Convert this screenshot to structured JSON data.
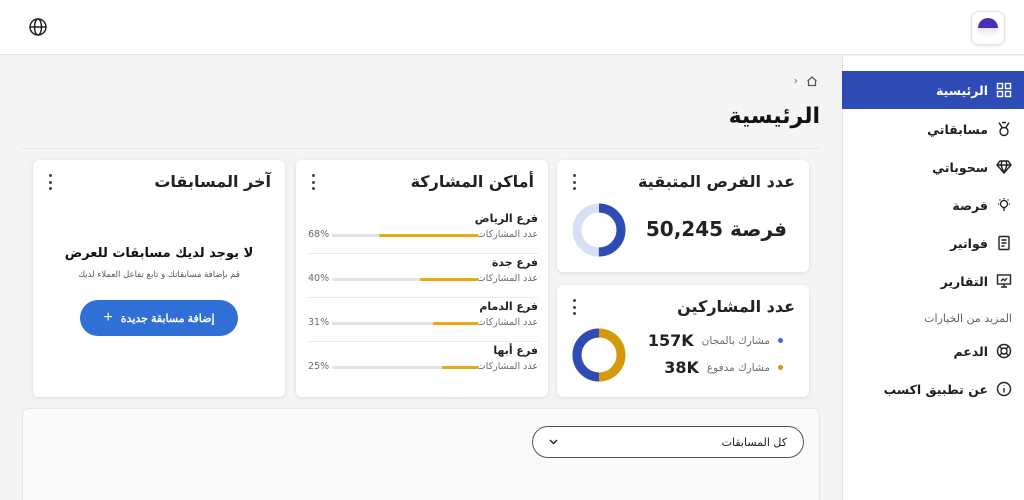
{
  "header": {
    "globe_icon": "globe-icon",
    "logo_icon": "app-logo"
  },
  "sidebar": {
    "items": [
      {
        "label": "الرئيسية",
        "icon": "dashboard-icon",
        "active": true
      },
      {
        "label": "مسابقاتي",
        "icon": "medal-icon",
        "active": false
      },
      {
        "label": "سحوباتي",
        "icon": "diamond-icon",
        "active": false
      },
      {
        "label": "فرصة",
        "icon": "lightbulb-icon",
        "active": false
      },
      {
        "label": "فواتير",
        "icon": "invoice-icon",
        "active": false
      },
      {
        "label": "التقارير",
        "icon": "presentation-icon",
        "active": false
      }
    ],
    "more_label": "المزيد من الخيارات",
    "more_items": [
      {
        "label": "الدعم",
        "icon": "lifebuoy-icon"
      },
      {
        "label": "عن تطبيق اكسب",
        "icon": "info-icon"
      }
    ]
  },
  "page": {
    "title": "الرئيسية"
  },
  "cards": {
    "remaining": {
      "title": "عدد الفرص المتبقية",
      "value": "50,245 فرصة",
      "ring_fraction": 0.5
    },
    "participants": {
      "title": "عدد المشاركين",
      "free": {
        "value": "157K",
        "label": "مشارك بالمجان",
        "color": "#2f4bb5"
      },
      "paid": {
        "value": "38K",
        "label": "مشارك مدفوع",
        "color": "#d49a0a"
      }
    },
    "places": {
      "title": "أماكن المشاركة",
      "sub_label": "عدد المشاركات",
      "items": [
        {
          "name": "فرع الرياض",
          "pct": "68%",
          "fraction": 0.68
        },
        {
          "name": "فرع جدة",
          "pct": "40%",
          "fraction": 0.4
        },
        {
          "name": "فرع الدمام",
          "pct": "31%",
          "fraction": 0.31
        },
        {
          "name": "فرع أبها",
          "pct": "25%",
          "fraction": 0.25
        }
      ]
    },
    "latest": {
      "title": "آخر المسابقات",
      "empty_title": "لا يوجد لديك مسابقات للعرض",
      "empty_sub": "قم بإضافة مسابقاتك و تابع تفاعل العملاء لديك",
      "add_label": "إضافة مسابقة جديدة"
    }
  },
  "filter": {
    "selected": "كل المسابقات"
  },
  "colors": {
    "primary": "#2f4bb5",
    "accent": "#e8a911",
    "button": "#2f6fd6"
  }
}
